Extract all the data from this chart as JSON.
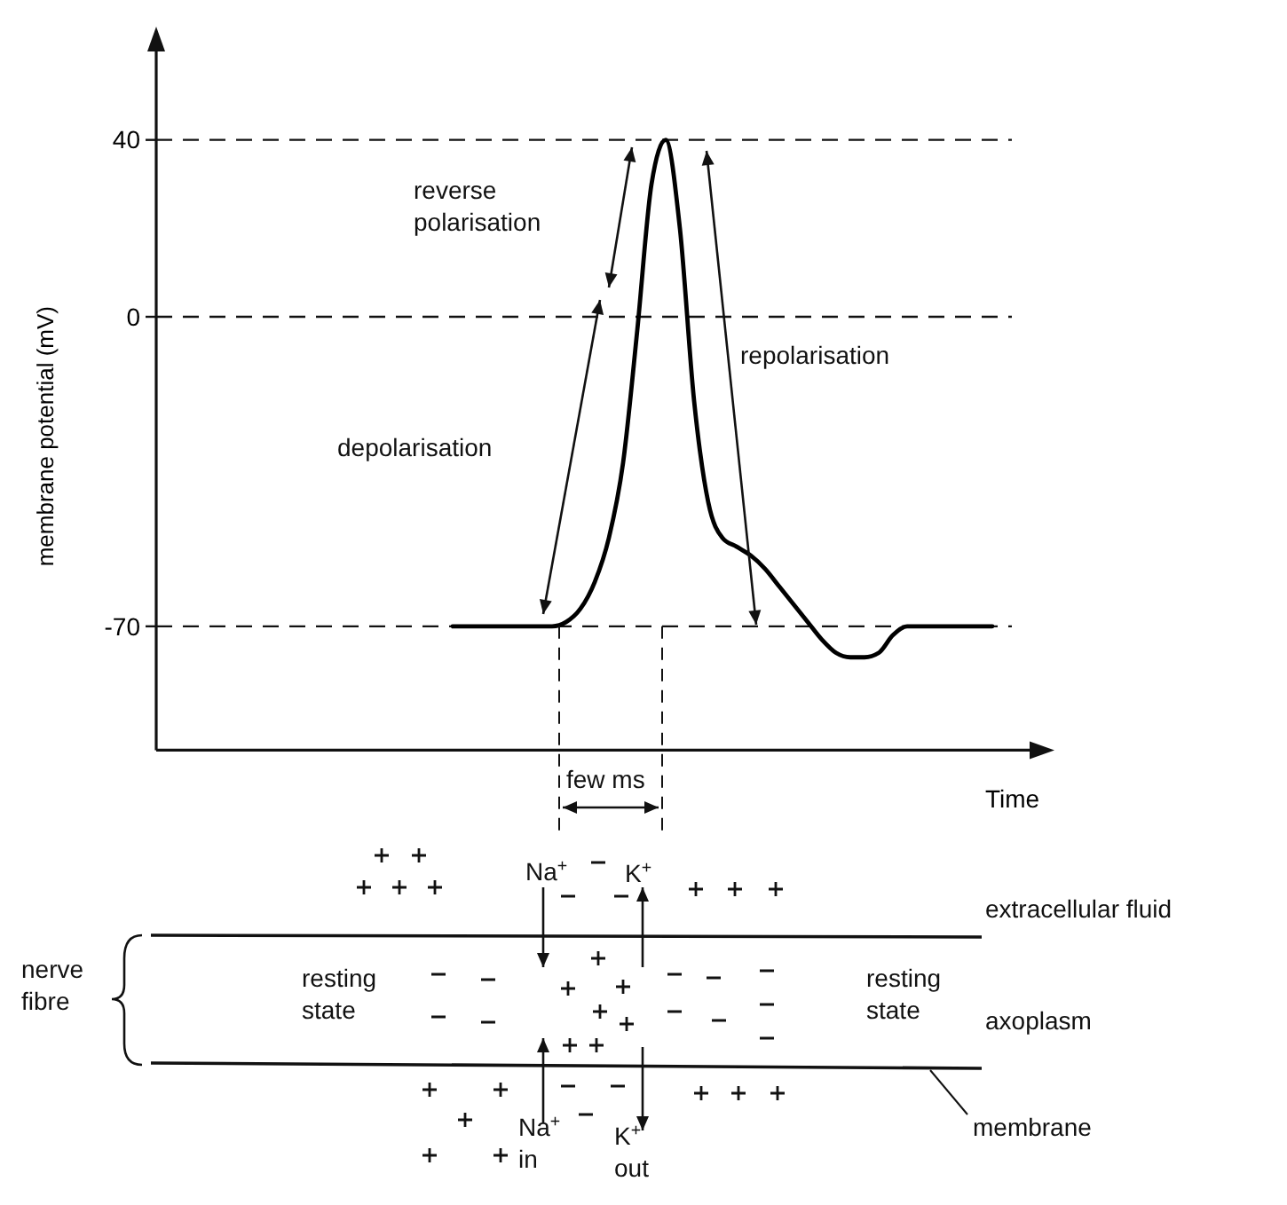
{
  "chart_data": {
    "type": "line",
    "xlabel": "Time",
    "ylabel": "membrane potential (mV)",
    "categories": [
      null,
      null,
      null,
      null,
      null,
      null,
      null,
      null,
      null,
      null,
      null,
      null,
      null,
      null,
      null,
      null,
      null,
      null,
      null,
      null,
      null,
      null,
      null,
      null,
      null,
      null,
      null,
      null,
      null,
      null,
      null,
      null,
      null,
      null,
      null,
      null,
      null,
      null,
      null,
      null,
      null,
      null,
      null,
      null,
      null,
      null,
      null,
      null,
      null,
      null,
      null,
      null,
      null,
      null,
      null,
      null,
      null,
      null,
      null,
      null,
      null,
      null
    ],
    "values": [
      null,
      null,
      null,
      null,
      null,
      null,
      null,
      null,
      null,
      null,
      null,
      null,
      null,
      null,
      null,
      null,
      null,
      null,
      null,
      null,
      null,
      -70,
      -70,
      -70,
      -70,
      -70,
      -70,
      -70,
      -70,
      -69,
      -66,
      -60,
      -50,
      -33,
      -3,
      30,
      40,
      20,
      -19,
      -42,
      -50,
      -52,
      -54,
      -57,
      -61,
      -65,
      -69,
      -73,
      -76,
      -77,
      -77,
      -76,
      -72,
      -70,
      -70,
      -70,
      -70,
      -70,
      -70,
      -70,
      null,
      null
    ],
    "color": "#000000",
    "ylim": [
      -98,
      60
    ],
    "yticks": [
      40,
      0,
      -70
    ],
    "tick_labels": "y",
    "ref_lines": [
      {
        "axis": "y",
        "value": 40,
        "line_style": "dashed"
      },
      {
        "axis": "y",
        "value": 0,
        "line_style": "dashed"
      },
      {
        "axis": "y",
        "value": -70,
        "line_style": "dashed"
      }
    ],
    "annotations": [
      "reverse\npolarisation",
      "depolarisation",
      "repolarisation",
      "few ms",
      "Na$^{+}$",
      "K$^{+}$",
      "extracellular fluid",
      "nerve\nfibre",
      "resting\nstate",
      "resting\nstate",
      "axoplasm",
      "membrane",
      "Na$^{+}$\nin",
      "K$^{+}$\nout"
    ]
  }
}
